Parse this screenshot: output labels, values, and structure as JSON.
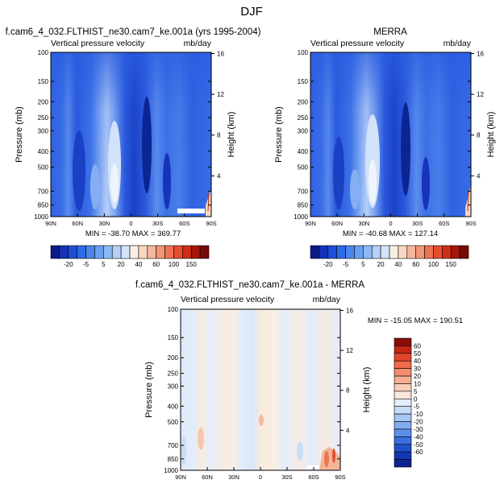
{
  "page_title": "DJF",
  "chart_data": [
    {
      "type": "heatmap",
      "title": "f.cam6_4_032.FLTHIST_ne30.cam7_ke.001a (yrs 1995-2004)",
      "subtitle_left": "Vertical pressure velocity",
      "subtitle_right": "mb/day",
      "xlabel": "",
      "ylabel": "Pressure (mb)",
      "y2label": "Height (km)",
      "x_ticks": [
        "90N",
        "60N",
        "30N",
        "0",
        "30S",
        "60S",
        "90S"
      ],
      "y_ticks": [
        "100",
        "150",
        "200",
        "250",
        "300",
        "400",
        "500",
        "700",
        "850",
        "1000"
      ],
      "y2_ticks": [
        "16",
        "12",
        "8",
        "4"
      ],
      "y_scale": "log",
      "ylim": [
        1000,
        100
      ],
      "xlim": [
        90,
        -90
      ],
      "stats": "MIN = -38.70  MAX = 369.77"
    },
    {
      "type": "heatmap",
      "title": "MERRA",
      "subtitle_left": "Vertical pressure velocity",
      "subtitle_right": "mb/day",
      "xlabel": "",
      "ylabel": "Pressure (mb)",
      "y2label": "Height (km)",
      "x_ticks": [
        "90N",
        "60N",
        "30N",
        "0",
        "30S",
        "60S",
        "90S"
      ],
      "y_ticks": [
        "100",
        "150",
        "200",
        "250",
        "300",
        "400",
        "500",
        "700",
        "850",
        "1000"
      ],
      "y2_ticks": [
        "16",
        "12",
        "8",
        "4"
      ],
      "y_scale": "log",
      "ylim": [
        1000,
        100
      ],
      "xlim": [
        90,
        -90
      ],
      "stats": "MIN = -40.68  MAX = 127.14"
    },
    {
      "type": "heatmap",
      "title": "f.cam6_4_032.FLTHIST_ne30.cam7_ke.001a - MERRA",
      "subtitle_left": "Vertical pressure velocity",
      "subtitle_right": "mb/day",
      "xlabel": "",
      "ylabel": "Pressure (mb)",
      "y2label": "Height (km)",
      "x_ticks": [
        "90N",
        "60N",
        "30N",
        "0",
        "30S",
        "60S",
        "90S"
      ],
      "y_ticks": [
        "100",
        "150",
        "200",
        "250",
        "300",
        "400",
        "500",
        "700",
        "850",
        "1000"
      ],
      "y2_ticks": [
        "16",
        "12",
        "8",
        "4"
      ],
      "y_scale": "log",
      "ylim": [
        1000,
        100
      ],
      "xlim": [
        90,
        -90
      ],
      "stats": "MIN = -15.05  MAX = 190.51"
    }
  ],
  "colorbar_top": {
    "labels": [
      "-20",
      "-5",
      "5",
      "20",
      "40",
      "60",
      "100",
      "150"
    ],
    "colors": [
      "#0a1a8c",
      "#1533b8",
      "#1f4fd6",
      "#2e6be6",
      "#4a86ee",
      "#6aa0f2",
      "#8fb9f5",
      "#b4d0f8",
      "#d3e4fa",
      "#f7efe4",
      "#f8d6c3",
      "#f5b89c",
      "#f29676",
      "#ee7352",
      "#e64e30",
      "#cf2e16",
      "#a8150a",
      "#7a0a05"
    ]
  },
  "colorbar_diff": {
    "labels": [
      "60",
      "50",
      "40",
      "30",
      "20",
      "10",
      "5",
      "0",
      "-5",
      "-10",
      "-20",
      "-30",
      "-40",
      "-50",
      "-60"
    ],
    "colors": [
      "#8a0d06",
      "#c32515",
      "#e3452a",
      "#ef6a48",
      "#f38d6c",
      "#f6ae91",
      "#f9cfb8",
      "#fbe7da",
      "#e3eefb",
      "#c8dcf8",
      "#a7c6f4",
      "#83acf0",
      "#5d8eea",
      "#3a6fe0",
      "#2150cc",
      "#1436b0",
      "#0c2290"
    ]
  }
}
